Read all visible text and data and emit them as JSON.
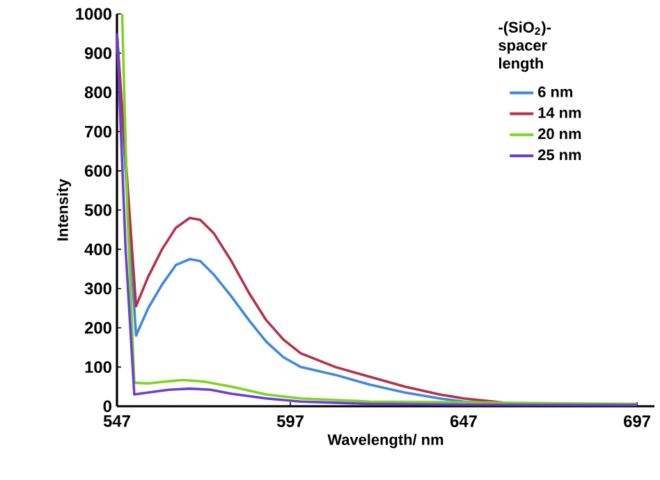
{
  "chart_data": {
    "type": "line",
    "xlabel": "Wavelength/ nm",
    "ylabel": "Intensity",
    "legend_title": "-(SiO$_{2}$)- spacer length",
    "xlim": [
      547,
      702
    ],
    "ylim": [
      0,
      1000
    ],
    "xticks": [
      547,
      597,
      647,
      697
    ],
    "yticks": [
      0,
      100,
      200,
      300,
      400,
      500,
      600,
      700,
      800,
      900,
      1000
    ],
    "grid": false,
    "legend": "top right",
    "marker": "none",
    "line_style": "solid",
    "series": [
      {
        "name": "6 nm",
        "color": "#3f88e0",
        "x": [
          547,
          552.5,
          556,
          560,
          564,
          568,
          571,
          575,
          580,
          585,
          590,
          595,
          600,
          610,
          620,
          630,
          640,
          647,
          660
        ],
        "values": [
          950,
          180,
          250,
          310,
          360,
          375,
          370,
          335,
          280,
          220,
          165,
          125,
          100,
          80,
          55,
          35,
          20,
          12,
          6
        ]
      },
      {
        "name": "14 nm",
        "color": "#b5304a",
        "x": [
          547,
          552.5,
          556,
          560,
          564,
          568,
          571,
          575,
          580,
          585,
          590,
          595,
          600,
          610,
          620,
          630,
          640,
          647,
          660,
          680,
          697
        ],
        "values": [
          950,
          255,
          330,
          400,
          455,
          480,
          475,
          440,
          370,
          290,
          220,
          170,
          135,
          100,
          75,
          50,
          30,
          20,
          8,
          5,
          3
        ]
      },
      {
        "name": "20 nm",
        "color": "#7ed321",
        "x": [
          548.5,
          550,
          552,
          556,
          560,
          566,
          572,
          580,
          590,
          600,
          620,
          647,
          680,
          697
        ],
        "values": [
          1000,
          500,
          60,
          58,
          62,
          67,
          63,
          50,
          30,
          20,
          12,
          10,
          7,
          6
        ]
      },
      {
        "name": "25 nm",
        "color": "#6a3fd6",
        "x": [
          547,
          549.5,
          552,
          556,
          562,
          568,
          574,
          580,
          590,
          600,
          620,
          647,
          697
        ],
        "values": [
          950,
          400,
          30,
          35,
          42,
          45,
          42,
          32,
          20,
          12,
          6,
          4,
          3
        ]
      }
    ]
  }
}
